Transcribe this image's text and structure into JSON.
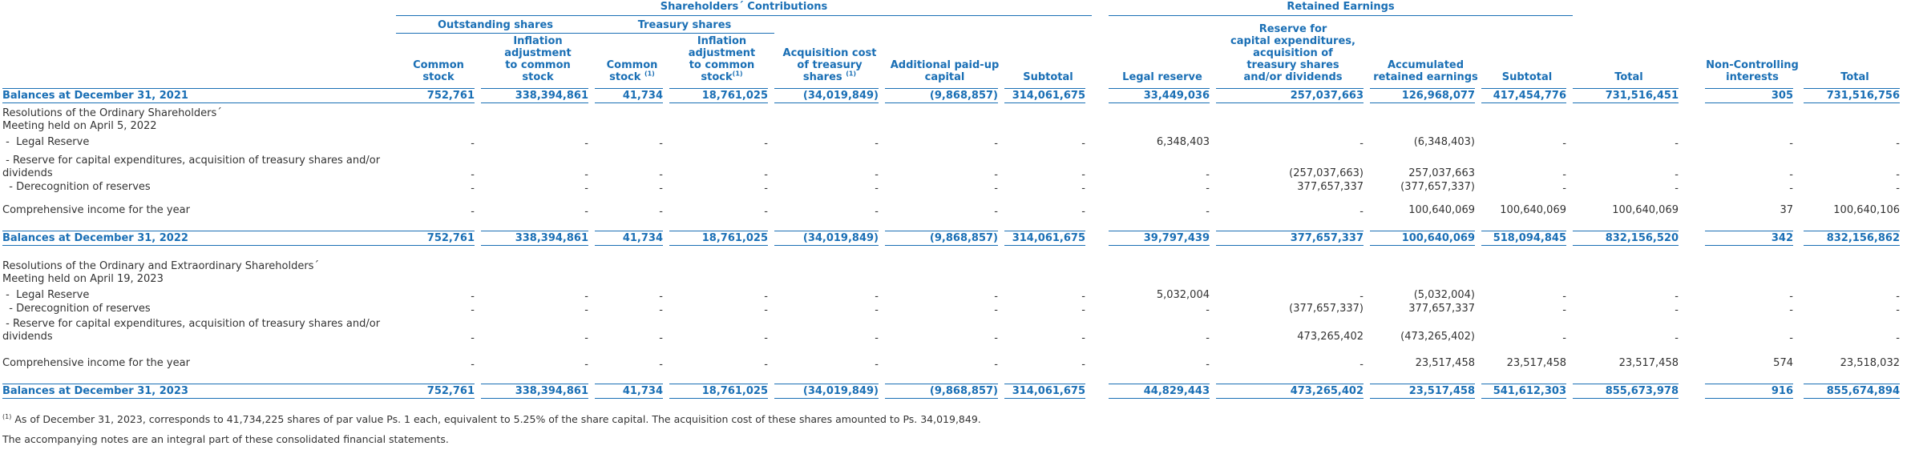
{
  "colors": {
    "accent": "#1a6fb5",
    "text": "#333333"
  },
  "header": {
    "group_contributions": "Shareholders´ Contributions",
    "group_retained": "Retained Earnings",
    "sub_outstanding": "Outstanding shares",
    "sub_treasury": "Treasury shares",
    "columns": [
      "Common stock",
      "Inflation adjustment to common stock",
      "Common stock (1)",
      "Inflation adjustment to common stock(1)",
      "Acquisition cost of treasury shares (1)",
      "Additional paid-up capital",
      "Subtotal",
      "Legal reserve",
      "Reserve for capital expenditures, acquisition of treasury shares and/or dividends",
      "Accumulated retained earnings",
      "Subtotal",
      "Total",
      "Non-Controlling interests",
      "Total"
    ]
  },
  "rows": [
    {
      "label": "Balances at December 31, 2021",
      "balance": true,
      "values": [
        "752,761",
        "338,394,861",
        "41,734",
        "18,761,025",
        "(34,019,849)",
        "(9,868,857)",
        "314,061,675",
        "33,449,036",
        "257,037,663",
        "126,968,077",
        "417,454,776",
        "731,516,451",
        "305",
        "731,516,756"
      ]
    },
    {
      "label": "Resolutions of the Ordinary Shareholders´",
      "values": []
    },
    {
      "label": "Meeting held on April 5, 2022",
      "values": []
    },
    {
      "label": " -  Legal Reserve",
      "values": [
        "-",
        "-",
        "-",
        "-",
        "-",
        "-",
        "-",
        "6,348,403",
        "-",
        "(6,348,403)",
        "-",
        "-",
        "-",
        "-"
      ]
    },
    {
      "label": " - Reserve for capital expenditures, acquisition of treasury shares and/or",
      "values": []
    },
    {
      "label": "dividends",
      "values": [
        "-",
        "-",
        "-",
        "-",
        "-",
        "-",
        "-",
        "-",
        "(257,037,663)",
        "257,037,663",
        "-",
        "-",
        "-",
        "-"
      ]
    },
    {
      "label": "  - Derecognition of reserves",
      "values": [
        "-",
        "-",
        "-",
        "-",
        "-",
        "-",
        "-",
        "-",
        "377,657,337",
        "(377,657,337)",
        "-",
        "-",
        "-",
        "-"
      ]
    },
    {
      "label": "Comprehensive income for the year",
      "values": [
        "-",
        "-",
        "-",
        "-",
        "-",
        "-",
        "-",
        "-",
        "-",
        "100,640,069",
        "100,640,069",
        "100,640,069",
        "37",
        "100,640,106"
      ]
    },
    {
      "label": "Balances at December 31, 2022",
      "balance": true,
      "values": [
        "752,761",
        "338,394,861",
        "41,734",
        "18,761,025",
        "(34,019,849)",
        "(9,868,857)",
        "314,061,675",
        "39,797,439",
        "377,657,337",
        "100,640,069",
        "518,094,845",
        "832,156,520",
        "342",
        "832,156,862"
      ]
    },
    {
      "label": "Resolutions of the Ordinary and Extraordinary Shareholders´",
      "values": []
    },
    {
      "label": "Meeting held on April 19, 2023",
      "values": []
    },
    {
      "label": " -  Legal Reserve",
      "values": [
        "-",
        "-",
        "-",
        "-",
        "-",
        "-",
        "-",
        "5,032,004",
        "-",
        "(5,032,004)",
        "-",
        "-",
        "-",
        "-"
      ]
    },
    {
      "label": "  - Derecognition of reserves",
      "values": [
        "-",
        "-",
        "-",
        "-",
        "-",
        "-",
        "-",
        "-",
        "(377,657,337)",
        "377,657,337",
        "-",
        "-",
        "-",
        "-"
      ]
    },
    {
      "label": " - Reserve for capital expenditures, acquisition of treasury shares and/or",
      "values": []
    },
    {
      "label": "dividends",
      "values": [
        "-",
        "-",
        "-",
        "-",
        "-",
        "-",
        "-",
        "-",
        "473,265,402",
        "(473,265,402)",
        "-",
        "-",
        "-",
        "-"
      ]
    },
    {
      "label": "Comprehensive income for the year",
      "values": [
        "-",
        "-",
        "-",
        "-",
        "-",
        "-",
        "-",
        "-",
        "-",
        "23,517,458",
        "23,517,458",
        "23,517,458",
        "574",
        "23,518,032"
      ]
    },
    {
      "label": "Balances at December 31, 2023",
      "balance": true,
      "values": [
        "752,761",
        "338,394,861",
        "41,734",
        "18,761,025",
        "(34,019,849)",
        "(9,868,857)",
        "314,061,675",
        "44,829,443",
        "473,265,402",
        "23,517,458",
        "541,612,303",
        "855,673,978",
        "916",
        "855,674,894"
      ]
    }
  ],
  "footnote": {
    "marker": "(1)",
    "text": " As of December 31, 2023, corresponds to 41,734,225 shares of par value Ps. 1 each, equivalent to 5.25% of the share capital. The acquisition cost of these shares amounted to Ps. 34,019,849."
  },
  "note": "The accompanying notes are an integral part of these consolidated financial statements."
}
